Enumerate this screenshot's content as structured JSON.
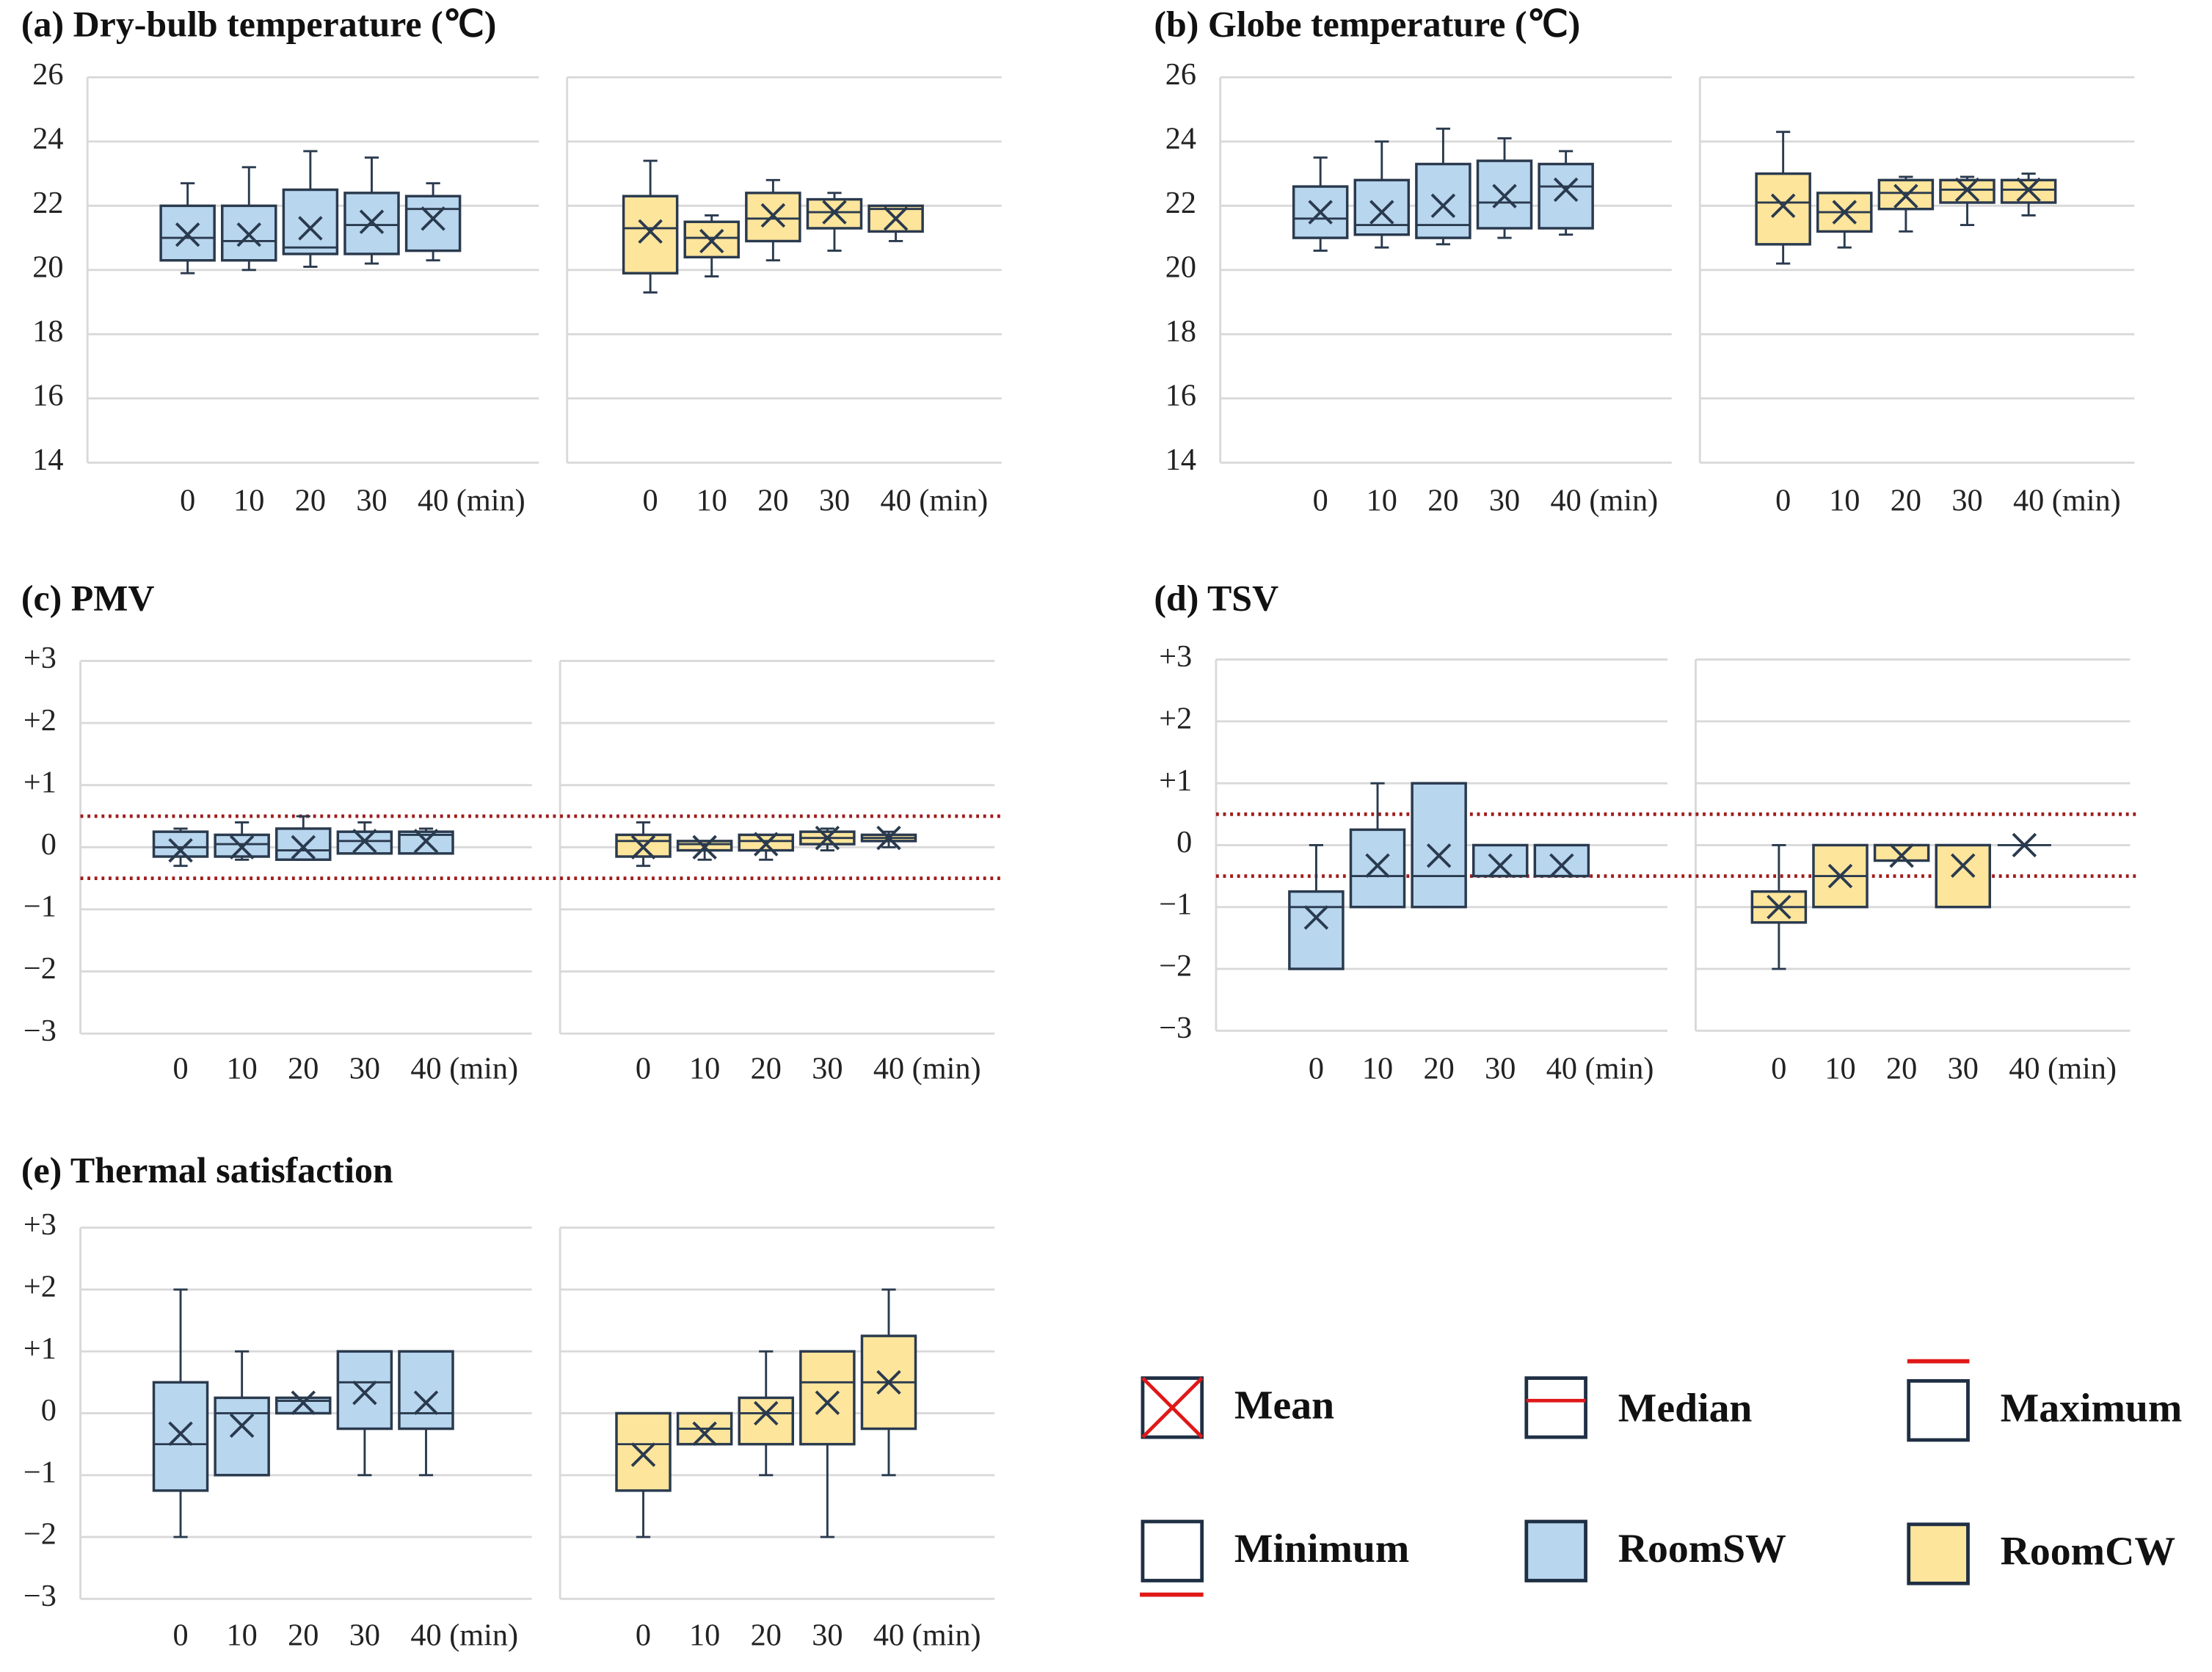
{
  "chart_data": [
    {
      "type": "box",
      "title": "(a) Dry-bulb temperature (℃)",
      "categories": [
        "0",
        "10",
        "20",
        "30",
        "40 (min)"
      ],
      "ylim": [
        14,
        26
      ],
      "yticks": [
        14,
        16,
        18,
        20,
        22,
        24,
        26
      ],
      "grid": true,
      "series": [
        {
          "name": "RoomSW",
          "color": "#b8d6ee",
          "min": [
            19.9,
            20.0,
            20.1,
            20.2,
            20.3
          ],
          "q1": [
            20.3,
            20.3,
            20.5,
            20.5,
            20.6
          ],
          "median": [
            21.0,
            20.9,
            20.7,
            21.4,
            21.9
          ],
          "q3": [
            22.0,
            22.0,
            22.5,
            22.4,
            22.3
          ],
          "max": [
            22.7,
            23.2,
            23.7,
            23.5,
            22.7
          ],
          "mean": [
            21.1,
            21.1,
            21.3,
            21.5,
            21.6
          ]
        },
        {
          "name": "RoomCW",
          "color": "#fde59c",
          "min": [
            19.3,
            19.8,
            20.3,
            20.6,
            20.9
          ],
          "q1": [
            19.9,
            20.4,
            20.9,
            21.3,
            21.2
          ],
          "median": [
            21.3,
            21.0,
            21.6,
            21.8,
            21.9
          ],
          "q3": [
            22.3,
            21.5,
            22.4,
            22.2,
            22.0
          ],
          "max": [
            23.4,
            21.7,
            22.8,
            22.4,
            22.0
          ],
          "mean": [
            21.2,
            20.9,
            21.7,
            21.8,
            21.6
          ]
        }
      ]
    },
    {
      "type": "box",
      "title": "(b) Globe temperature (℃)",
      "categories": [
        "0",
        "10",
        "20",
        "30",
        "40 (min)"
      ],
      "ylim": [
        14,
        26
      ],
      "yticks": [
        14,
        16,
        18,
        20,
        22,
        24,
        26
      ],
      "grid": true,
      "series": [
        {
          "name": "RoomSW",
          "color": "#b8d6ee",
          "min": [
            20.6,
            20.7,
            20.8,
            21.0,
            21.1
          ],
          "q1": [
            21.0,
            21.1,
            21.0,
            21.3,
            21.3
          ],
          "median": [
            21.6,
            21.4,
            21.4,
            22.1,
            22.6
          ],
          "q3": [
            22.6,
            22.8,
            23.3,
            23.4,
            23.3
          ],
          "max": [
            23.5,
            24.0,
            24.4,
            24.1,
            23.7
          ],
          "mean": [
            21.8,
            21.8,
            22.0,
            22.3,
            22.5
          ]
        },
        {
          "name": "RoomCW",
          "color": "#fde59c",
          "min": [
            20.2,
            20.7,
            21.2,
            21.4,
            21.7
          ],
          "q1": [
            20.8,
            21.2,
            21.9,
            22.1,
            22.1
          ],
          "median": [
            22.1,
            21.8,
            22.4,
            22.5,
            22.5
          ],
          "q3": [
            23.0,
            22.4,
            22.8,
            22.8,
            22.8
          ],
          "max": [
            24.3,
            22.4,
            22.9,
            22.9,
            23.0
          ],
          "mean": [
            22.0,
            21.8,
            22.3,
            22.5,
            22.5
          ]
        }
      ]
    },
    {
      "type": "box",
      "title": "(c) PMV",
      "categories": [
        "0",
        "10",
        "20",
        "30",
        "40 (min)"
      ],
      "ylim": [
        -3,
        3
      ],
      "yticks": [
        {
          "value": -3,
          "label": "−3"
        },
        {
          "value": -2,
          "label": "−2"
        },
        {
          "value": -1,
          "label": "−1"
        },
        0,
        {
          "value": 1,
          "label": "+1"
        },
        {
          "value": 2,
          "label": "+2"
        },
        {
          "value": 3,
          "label": "+3"
        }
      ],
      "grid": true,
      "reference_lines": [
        0.5,
        -0.5
      ],
      "series": [
        {
          "name": "RoomSW",
          "color": "#b8d6ee",
          "min": [
            -0.3,
            -0.2,
            -0.2,
            -0.1,
            -0.1
          ],
          "q1": [
            -0.15,
            -0.15,
            -0.2,
            -0.1,
            -0.1
          ],
          "median": [
            0,
            0.05,
            -0.05,
            0.1,
            0.2
          ],
          "q3": [
            0.25,
            0.2,
            0.3,
            0.25,
            0.25
          ],
          "max": [
            0.3,
            0.4,
            0.5,
            0.4,
            0.3
          ],
          "mean": [
            -0.05,
            0,
            0,
            0.1,
            0.1
          ]
        },
        {
          "name": "RoomCW",
          "color": "#fde59c",
          "min": [
            -0.3,
            -0.2,
            -0.2,
            -0.05,
            0
          ],
          "q1": [
            -0.15,
            -0.05,
            -0.05,
            0.05,
            0.1
          ],
          "median": [
            0.1,
            0.05,
            0.1,
            0.15,
            0.15
          ],
          "q3": [
            0.2,
            0.1,
            0.2,
            0.25,
            0.2
          ],
          "max": [
            0.4,
            0.1,
            0.2,
            0.3,
            0.25
          ],
          "mean": [
            0,
            0,
            0.05,
            0.15,
            0.15
          ]
        }
      ]
    },
    {
      "type": "box",
      "title": "(d) TSV",
      "categories": [
        "0",
        "10",
        "20",
        "30",
        "40 (min)"
      ],
      "ylim": [
        -3,
        3
      ],
      "yticks": [
        {
          "value": -3,
          "label": "−3"
        },
        {
          "value": -2,
          "label": "−2"
        },
        {
          "value": -1,
          "label": "−1"
        },
        0,
        {
          "value": 1,
          "label": "+1"
        },
        {
          "value": 2,
          "label": "+2"
        },
        {
          "value": 3,
          "label": "+3"
        }
      ],
      "grid": true,
      "reference_lines": [
        0.5,
        -0.5
      ],
      "series": [
        {
          "name": "RoomSW",
          "color": "#b8d6ee",
          "min": [
            -2,
            -1,
            -1,
            -0.5,
            -0.5
          ],
          "q1": [
            -2,
            -1,
            -1,
            -0.5,
            -0.5
          ],
          "median": [
            -1,
            -0.5,
            -0.5,
            0,
            0
          ],
          "q3": [
            -0.75,
            0.25,
            1,
            0,
            0
          ],
          "max": [
            0,
            1,
            1,
            0,
            0
          ],
          "mean": [
            -1.17,
            -0.33,
            -0.17,
            -0.33,
            -0.33
          ]
        },
        {
          "name": "RoomCW",
          "color": "#fde59c",
          "min": [
            -2,
            -1,
            -0.25,
            -1,
            0
          ],
          "q1": [
            -1.25,
            -1,
            -0.25,
            -1,
            0
          ],
          "median": [
            -1,
            -0.5,
            0,
            0,
            0
          ],
          "q3": [
            -0.75,
            0,
            0,
            0,
            0
          ],
          "max": [
            0,
            0,
            0,
            0,
            0
          ],
          "mean": [
            -1,
            -0.5,
            -0.17,
            -0.33,
            0
          ]
        }
      ]
    },
    {
      "type": "box",
      "title": "(e) Thermal satisfaction",
      "categories": [
        "0",
        "10",
        "20",
        "30",
        "40 (min)"
      ],
      "ylim": [
        -3,
        3
      ],
      "yticks": [
        {
          "value": -3,
          "label": "−3"
        },
        {
          "value": -2,
          "label": "−2"
        },
        {
          "value": -1,
          "label": "−1"
        },
        0,
        {
          "value": 1,
          "label": "+1"
        },
        {
          "value": 2,
          "label": "+2"
        },
        {
          "value": 3,
          "label": "+3"
        }
      ],
      "grid": true,
      "series": [
        {
          "name": "RoomSW",
          "color": "#b8d6ee",
          "min": [
            -2,
            -1,
            0,
            -1,
            -1
          ],
          "q1": [
            -1.25,
            -1,
            0,
            -0.25,
            -0.25
          ],
          "median": [
            -0.5,
            0,
            0.2,
            0.5,
            0
          ],
          "q3": [
            0.5,
            0.25,
            0.25,
            1,
            1
          ],
          "max": [
            2,
            1,
            0.25,
            1,
            1
          ],
          "mean": [
            -0.33,
            -0.2,
            0.17,
            0.33,
            0.17
          ]
        },
        {
          "name": "RoomCW",
          "color": "#fde59c",
          "min": [
            -2,
            -0.5,
            -1,
            -2,
            -1
          ],
          "q1": [
            -1.25,
            -0.5,
            -0.5,
            -0.5,
            -0.25
          ],
          "median": [
            -0.5,
            -0.25,
            0,
            0.5,
            0.5
          ],
          "q3": [
            0,
            0,
            0.25,
            1,
            1.25
          ],
          "max": [
            0,
            0,
            1,
            1,
            2
          ],
          "mean": [
            -0.67,
            -0.33,
            0,
            0.17,
            0.5
          ]
        }
      ]
    }
  ],
  "legend": [
    "Mean",
    "Median",
    "Maximum",
    "Minimum"
  ]
}
